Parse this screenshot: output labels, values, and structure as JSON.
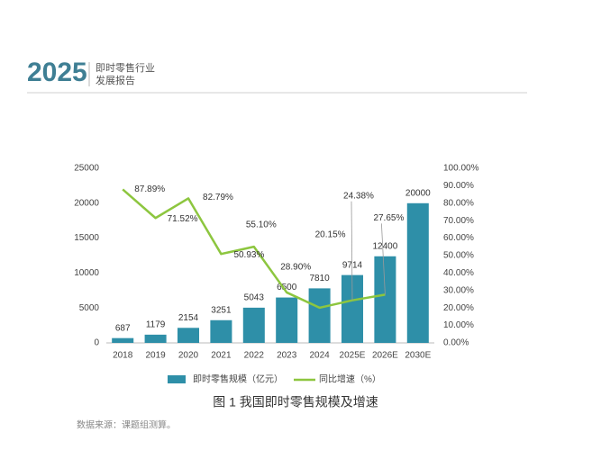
{
  "header": {
    "title": "2025",
    "subtitle_lines": [
      "即时零售行业",
      "发展报告"
    ]
  },
  "chart_data": {
    "type": "bar_line",
    "categories": [
      "2018",
      "2019",
      "2020",
      "2021",
      "2022",
      "2023",
      "2024",
      "2025E",
      "2026E",
      "2030E"
    ],
    "series": [
      {
        "name": "即时零售规模（亿元）",
        "type": "bar",
        "color": "#2e8fa8",
        "values": [
          687,
          1179,
          2154,
          3251,
          5043,
          6500,
          7810,
          9714,
          12400,
          20000
        ]
      },
      {
        "name": "同比增速（%）",
        "type": "line",
        "axis": "y2",
        "color": "#8dc63f",
        "values": [
          87.89,
          71.52,
          82.79,
          50.93,
          55.1,
          28.9,
          20.15,
          24.38,
          27.65,
          null
        ],
        "value_labels": [
          "87.89%",
          "71.52%",
          "82.79%",
          "50.93%",
          "55.10%",
          "28.90%",
          "20.15%",
          "24.38%",
          "27.65%",
          null
        ]
      }
    ],
    "ylim": [
      0,
      25000
    ],
    "yticks": [
      0,
      5000,
      10000,
      15000,
      20000,
      25000
    ],
    "y2lim": [
      0,
      100
    ],
    "y2ticks": [
      {
        "value": 0,
        "label": "0.00%"
      },
      {
        "value": 10,
        "label": "10.00%"
      },
      {
        "value": 20,
        "label": "20.00%"
      },
      {
        "value": 30,
        "label": "30.00%"
      },
      {
        "value": 40,
        "label": "40.00%"
      },
      {
        "value": 50,
        "label": "50.00%"
      },
      {
        "value": 60,
        "label": "60.00%"
      },
      {
        "value": 70,
        "label": "70.00%"
      },
      {
        "value": 80,
        "label": "80.00%"
      },
      {
        "value": 90,
        "label": "90.00%"
      },
      {
        "value": 100,
        "label": "100.00%"
      }
    ],
    "legend": "bottom"
  },
  "caption": "图 1 我国即时零售规模及增速",
  "source": "数据来源：课题组测算。"
}
